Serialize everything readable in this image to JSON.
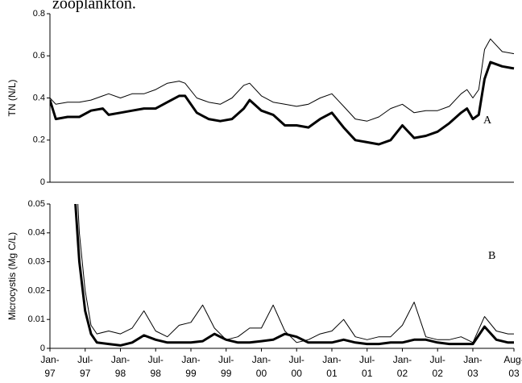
{
  "caption": "zooplankton.",
  "chart_data": [
    {
      "type": "line",
      "y_label": "TN (N/L)",
      "panel_label": "A",
      "xlim": [
        0,
        79
      ],
      "ylim": [
        0,
        0.8
      ],
      "yticks": [
        0,
        0.2,
        0.4,
        0.6,
        0.8
      ],
      "x": [
        0,
        1,
        3,
        5,
        7,
        9,
        10,
        12,
        14,
        16,
        18,
        20,
        22,
        23,
        25,
        27,
        29,
        31,
        33,
        34,
        36,
        38,
        40,
        42,
        44,
        46,
        48,
        50,
        52,
        54,
        56,
        58,
        60,
        62,
        64,
        66,
        68,
        70,
        71,
        72,
        73,
        74,
        75,
        76,
        77,
        79
      ],
      "series": [
        {
          "color": "#000000",
          "width": 1,
          "values": [
            0.4,
            0.37,
            0.38,
            0.38,
            0.39,
            0.41,
            0.42,
            0.4,
            0.42,
            0.42,
            0.44,
            0.47,
            0.48,
            0.47,
            0.4,
            0.38,
            0.37,
            0.4,
            0.46,
            0.47,
            0.41,
            0.38,
            0.37,
            0.36,
            0.37,
            0.4,
            0.42,
            0.36,
            0.3,
            0.29,
            0.31,
            0.35,
            0.37,
            0.33,
            0.34,
            0.34,
            0.36,
            0.42,
            0.44,
            0.4,
            0.44,
            0.63,
            0.68,
            0.65,
            0.62,
            0.61
          ]
        },
        {
          "color": "#000000",
          "width": 3,
          "values": [
            0.39,
            0.3,
            0.31,
            0.31,
            0.34,
            0.35,
            0.32,
            0.33,
            0.34,
            0.35,
            0.35,
            0.38,
            0.41,
            0.41,
            0.33,
            0.3,
            0.29,
            0.3,
            0.35,
            0.39,
            0.34,
            0.32,
            0.27,
            0.27,
            0.26,
            0.3,
            0.33,
            0.26,
            0.2,
            0.19,
            0.18,
            0.2,
            0.27,
            0.21,
            0.22,
            0.24,
            0.28,
            0.33,
            0.35,
            0.3,
            0.32,
            0.49,
            0.57,
            0.56,
            0.55,
            0.54
          ]
        }
      ]
    },
    {
      "type": "line",
      "y_label": "Microcystis  (Mg C/L)",
      "panel_label": "B",
      "xlim": [
        0,
        79
      ],
      "ylim": [
        0,
        0.05
      ],
      "yticks": [
        0,
        0.01,
        0.02,
        0.03,
        0.04,
        0.05
      ],
      "xticks": [
        {
          "value": 0,
          "label": "Jan-\n97"
        },
        {
          "value": 6,
          "label": "Jul-\n97"
        },
        {
          "value": 12,
          "label": "Jan-\n98"
        },
        {
          "value": 18,
          "label": "Jul-\n98"
        },
        {
          "value": 24,
          "label": "Jan-\n99"
        },
        {
          "value": 30,
          "label": "Jul-\n99"
        },
        {
          "value": 36,
          "label": "Jan-\n00"
        },
        {
          "value": 42,
          "label": "Jul-\n00"
        },
        {
          "value": 48,
          "label": "Jan-\n01"
        },
        {
          "value": 54,
          "label": "Jul-\n01"
        },
        {
          "value": 60,
          "label": "Jan-\n02"
        },
        {
          "value": 66,
          "label": "Jul-\n02"
        },
        {
          "value": 72,
          "label": "Jan-\n03"
        },
        {
          "value": 79,
          "label": "Aug-\n03"
        }
      ],
      "x": [
        4,
        5,
        6,
        7,
        8,
        10,
        12,
        14,
        16,
        18,
        20,
        22,
        24,
        26,
        28,
        30,
        32,
        34,
        36,
        38,
        40,
        42,
        44,
        46,
        48,
        50,
        52,
        54,
        56,
        58,
        60,
        62,
        64,
        66,
        68,
        70,
        72,
        74,
        76,
        78,
        79
      ],
      "series": [
        {
          "color": "#000000",
          "width": 1,
          "values": [
            0.08,
            0.04,
            0.02,
            0.008,
            0.005,
            0.006,
            0.005,
            0.007,
            0.013,
            0.006,
            0.004,
            0.008,
            0.009,
            0.015,
            0.007,
            0.003,
            0.004,
            0.007,
            0.007,
            0.015,
            0.006,
            0.002,
            0.003,
            0.005,
            0.006,
            0.01,
            0.004,
            0.003,
            0.004,
            0.004,
            0.008,
            0.016,
            0.004,
            0.003,
            0.003,
            0.004,
            0.002,
            0.011,
            0.006,
            0.005,
            0.005
          ]
        },
        {
          "color": "#000000",
          "width": 3,
          "values": [
            0.06,
            0.03,
            0.013,
            0.005,
            0.002,
            0.0015,
            0.001,
            0.002,
            0.0045,
            0.003,
            0.002,
            0.002,
            0.002,
            0.0025,
            0.005,
            0.003,
            0.002,
            0.002,
            0.0025,
            0.003,
            0.005,
            0.004,
            0.002,
            0.002,
            0.002,
            0.003,
            0.002,
            0.0015,
            0.0015,
            0.002,
            0.002,
            0.003,
            0.003,
            0.002,
            0.0015,
            0.0015,
            0.0015,
            0.0075,
            0.003,
            0.002,
            0.002
          ]
        }
      ]
    }
  ]
}
